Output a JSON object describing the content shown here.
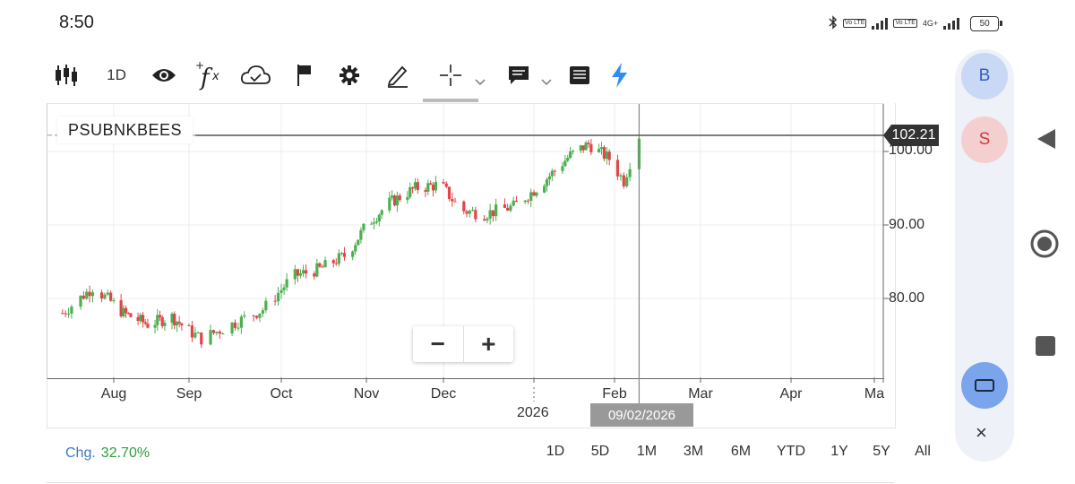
{
  "status_bar": {
    "time": "8:50",
    "lte": "Vo LTE",
    "network": "4G+",
    "battery": "50"
  },
  "toolbar": {
    "interval": "1D",
    "icons": [
      "candlestick-icon",
      "eye-icon",
      "fx-icon",
      "cloud-icon",
      "flag-icon",
      "gear-icon",
      "pencil-icon",
      "crosshair-icon",
      "comment-icon",
      "list-icon",
      "lightning-icon"
    ]
  },
  "chart": {
    "symbol": "PSUBNKBEES",
    "last_price": "102.21",
    "crosshair_date": "09/02/2026",
    "year_label": "2026",
    "y_ticks": [
      "100.00",
      "90.00",
      "80.00"
    ],
    "x_ticks": [
      "Aug",
      "Sep",
      "Oct",
      "Nov",
      "Dec",
      "Feb",
      "Mar",
      "Apr",
      "Ma"
    ],
    "colors": {
      "up": "#4caf50",
      "down": "#e0454a",
      "crosshair": "#888888"
    }
  },
  "chart_data": {
    "type": "candlestick",
    "title": "PSUBNKBEES",
    "x_range": [
      "Jul 2025",
      "May 2026"
    ],
    "ylim": [
      71,
      107
    ],
    "y_ticks": [
      80,
      90,
      100
    ],
    "grid": true,
    "last_price": 102.21,
    "series": [
      {
        "name": "PSUBNKBEES",
        "points": [
          [
            "2025-07-15",
            78.0
          ],
          [
            "2025-07-25",
            81.5
          ],
          [
            "2025-08-05",
            78.0
          ],
          [
            "2025-08-15",
            76.5
          ],
          [
            "2025-08-25",
            77.5
          ],
          [
            "2025-09-05",
            74.5
          ],
          [
            "2025-09-15",
            76.5
          ],
          [
            "2025-09-25",
            78.5
          ],
          [
            "2025-10-05",
            83.0
          ],
          [
            "2025-10-15",
            84.0
          ],
          [
            "2025-10-25",
            86.0
          ],
          [
            "2025-11-01",
            90.0
          ],
          [
            "2025-11-10",
            93.0
          ],
          [
            "2025-11-20",
            95.0
          ],
          [
            "2025-11-30",
            95.5
          ],
          [
            "2025-12-07",
            92.0
          ],
          [
            "2025-12-15",
            91.5
          ],
          [
            "2025-12-25",
            92.5
          ],
          [
            "2026-01-05",
            96.0
          ],
          [
            "2026-01-15",
            99.5
          ],
          [
            "2026-01-22",
            101.0
          ],
          [
            "2026-01-30",
            99.0
          ],
          [
            "2026-02-04",
            96.0
          ],
          [
            "2026-02-09",
            102.21
          ]
        ]
      }
    ]
  },
  "zoom": {
    "minus": "−",
    "plus": "+"
  },
  "bottom": {
    "chg_label": "Chg.",
    "chg_value": "32.70%",
    "ranges": [
      "1D",
      "5D",
      "1M",
      "3M",
      "6M",
      "YTD",
      "1Y",
      "5Y",
      "All"
    ]
  },
  "side": {
    "buy": "B",
    "sell": "S",
    "close": "×"
  }
}
